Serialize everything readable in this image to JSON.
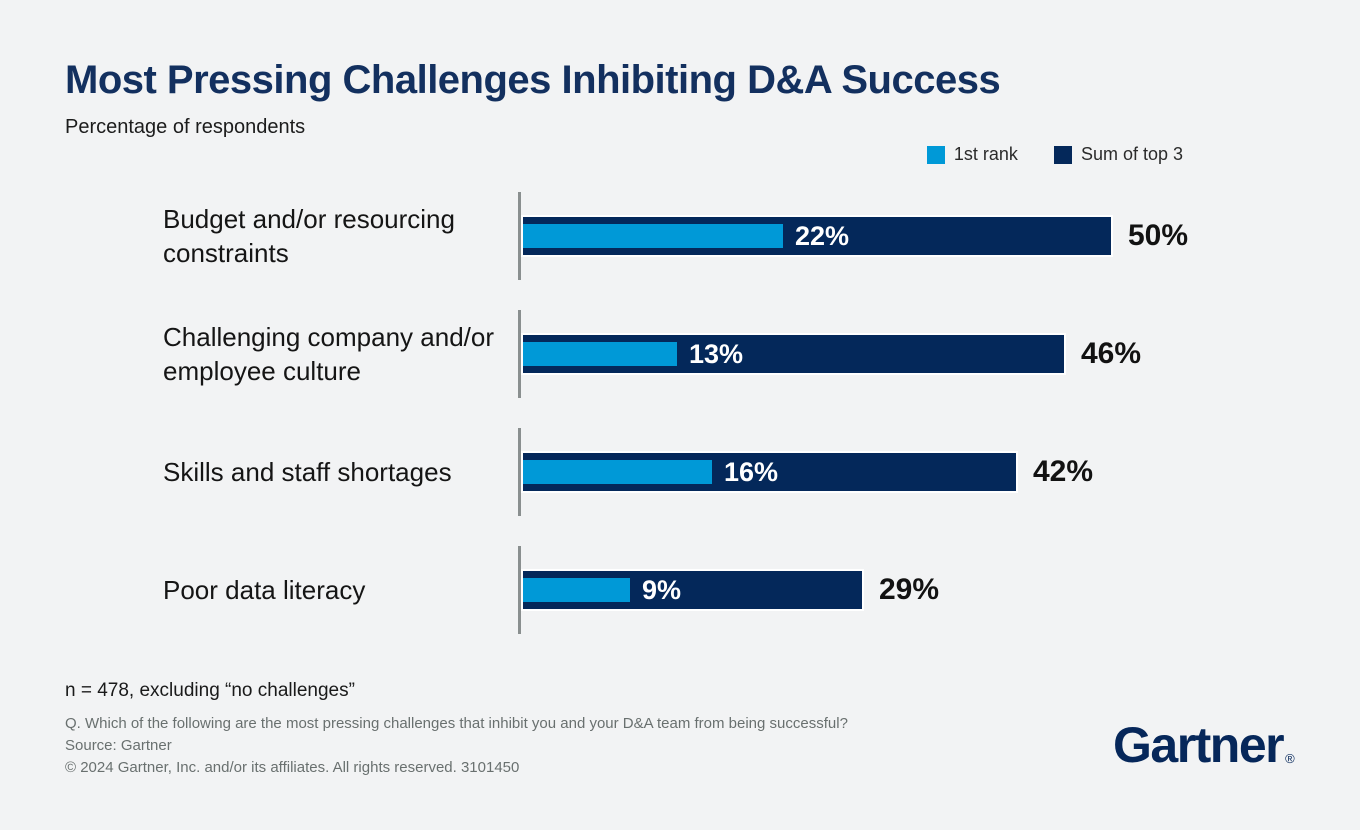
{
  "header": {
    "title": "Most Pressing Challenges Inhibiting D&A Success",
    "subtitle": "Percentage of respondents"
  },
  "legend": [
    {
      "label": "1st rank",
      "color": "#0099d7"
    },
    {
      "label": "Sum of top 3",
      "color": "#04285a"
    }
  ],
  "chart_data": {
    "type": "bar",
    "orientation": "horizontal",
    "unit": "%",
    "title": "Most Pressing Challenges Inhibiting D&A Success",
    "subtitle": "Percentage of respondents",
    "categories": [
      "Budget and/or resourcing constraints",
      "Challenging company and/or employee culture",
      "Skills and staff shortages",
      "Poor data literacy"
    ],
    "series": [
      {
        "name": "1st rank",
        "color": "#0099d7",
        "values": [
          22,
          13,
          16,
          9
        ]
      },
      {
        "name": "Sum of top 3",
        "color": "#04285a",
        "values": [
          50,
          46,
          42,
          29
        ]
      }
    ],
    "xlim": [
      0,
      54
    ],
    "value_labels": true,
    "grid": false,
    "legend_position": "top-right"
  },
  "footer": {
    "note": "n = 478, excluding “no challenges”",
    "question": "Q. Which of the following are the most pressing challenges that inhibit you and your D&A team from being successful?",
    "source": "Source: Gartner",
    "copyright": "© 2024 Gartner, Inc. and/or its affiliates. All rights reserved. 3101450"
  },
  "branding": {
    "logo_text": "Gartner",
    "registered_mark": "®"
  }
}
